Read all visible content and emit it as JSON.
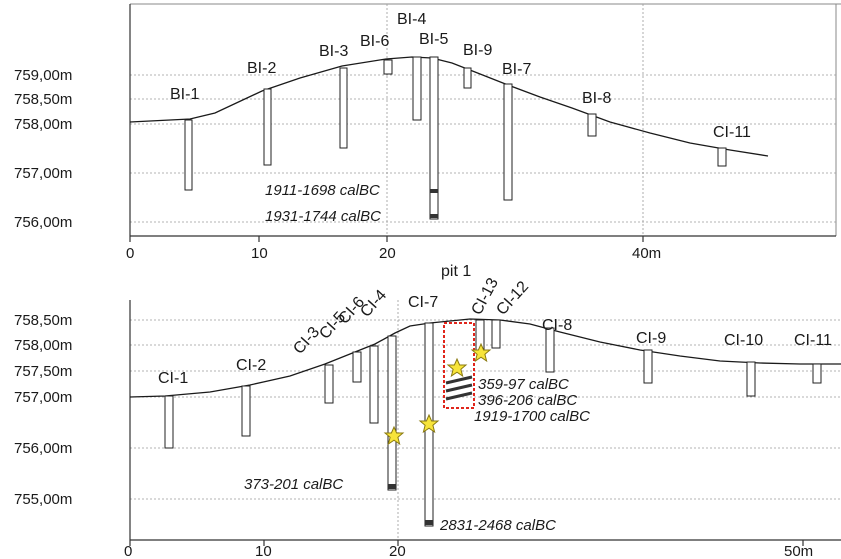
{
  "top_section": {
    "y_labels": [
      "759,00m",
      "758,50m",
      "758,00m",
      "757,00m",
      "756,00m"
    ],
    "x_labels": [
      "0",
      "10",
      "20",
      "40m"
    ],
    "boreholes": [
      "BI-1",
      "BI-2",
      "BI-3",
      "BI-6",
      "BI-4",
      "BI-5",
      "BI-9",
      "BI-7",
      "BI-8",
      "CI-11"
    ],
    "dates": [
      "1911-1698 calBC",
      "1931-1744 calBC"
    ]
  },
  "bottom_section": {
    "y_labels": [
      "758,50m",
      "758,00m",
      "757,50m",
      "757,00m",
      "756,00m",
      "755,00m"
    ],
    "x_labels": [
      "0",
      "10",
      "20",
      "50m"
    ],
    "boreholes": [
      "CI-1",
      "CI-2",
      "CI-3",
      "CI-5",
      "CI-6",
      "CI-4",
      "CI-7",
      "CI-13",
      "CI-12",
      "CI-8",
      "CI-9",
      "CI-10",
      "CI-11"
    ],
    "pit_label": "pit 1",
    "dates": [
      "359-97 calBC",
      "396-206 calBC",
      "1919-1700 calBC",
      "373-201 calBC",
      "2831-2468 calBC"
    ]
  },
  "colors": {
    "star_fill": "#f7e43a",
    "star_stroke": "#8a7a10",
    "pit_outline": "#e0251b",
    "sample_mark": "#333333"
  }
}
